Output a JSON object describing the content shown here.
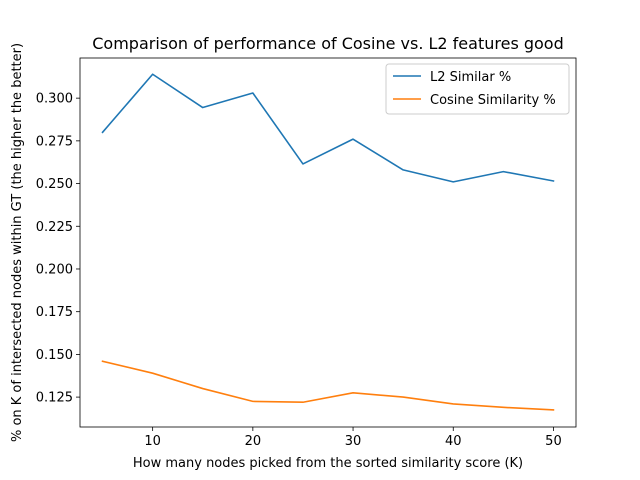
{
  "chart_data": {
    "type": "line",
    "title": "Comparison of performance of Cosine vs. L2 features good",
    "xlabel": "How many nodes picked from the sorted similarity score (K)",
    "ylabel": "% on K of intersected nodes within GT (the higher the better)",
    "x": [
      5,
      10,
      15,
      20,
      25,
      30,
      35,
      40,
      45,
      50
    ],
    "xlim": [
      2.75,
      52.25
    ],
    "ylim": [
      0.1075,
      0.3235
    ],
    "xticks": [
      10,
      20,
      30,
      40,
      50
    ],
    "yticks": [
      0.125,
      0.15,
      0.175,
      0.2,
      0.225,
      0.25,
      0.275,
      0.3
    ],
    "ytick_labels": [
      "0.125",
      "0.150",
      "0.175",
      "0.200",
      "0.225",
      "0.250",
      "0.275",
      "0.300"
    ],
    "grid": false,
    "legend_position": "top-right",
    "series": [
      {
        "name": "L2 Similar %",
        "color": "#1f77b4",
        "values": [
          0.28,
          0.314,
          0.2945,
          0.303,
          0.2615,
          0.276,
          0.258,
          0.251,
          0.257,
          0.2515
        ]
      },
      {
        "name": "Cosine Similarity %",
        "color": "#ff7f0e",
        "values": [
          0.146,
          0.139,
          0.13,
          0.1225,
          0.122,
          0.1275,
          0.125,
          0.121,
          0.119,
          0.1175
        ]
      }
    ]
  }
}
